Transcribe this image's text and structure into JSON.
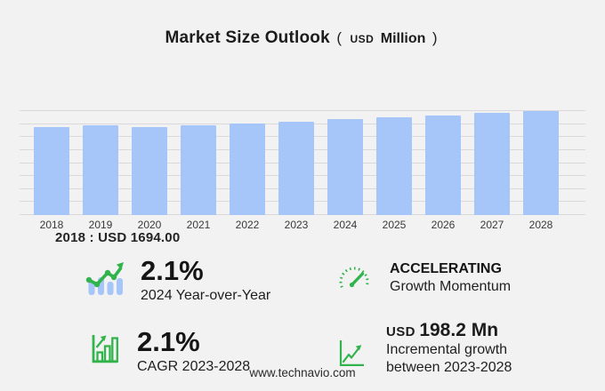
{
  "title": {
    "main": "Market Size Outlook",
    "paren_open": "(",
    "unit_prefix": "USD",
    "unit": "Million",
    "paren_close": ")"
  },
  "chart_data": {
    "type": "bar",
    "title": "Market Size Outlook (USD Million)",
    "categories": [
      "2018",
      "2019",
      "2020",
      "2021",
      "2022",
      "2023",
      "2024",
      "2025",
      "2026",
      "2027",
      "2028"
    ],
    "values": [
      1694,
      1740,
      1704,
      1740,
      1763,
      1808,
      1846,
      1885,
      1924,
      1964,
      2006
    ],
    "xlabel": "",
    "ylabel": "",
    "unit": "USD Million",
    "ylim": [
      0,
      2300
    ],
    "y_ticks_labeled": false,
    "grid": true,
    "legend": "none",
    "annotation": "2018 : USD  1694.00"
  },
  "stats": {
    "yoy": {
      "value": "2.1%",
      "label": "2024 Year-over-Year",
      "icon": "trend-line-over-bars-icon"
    },
    "momentum": {
      "value": "ACCELERATING",
      "label": "Growth Momentum",
      "icon": "speedometer-gauge-icon"
    },
    "cagr": {
      "value": "2.1%",
      "label": "CAGR 2023-2028",
      "icon": "bar-chart-growth-icon"
    },
    "incremental": {
      "value_prefix": "USD",
      "value": "198.2 Mn",
      "label_line1": "Incremental growth",
      "label_line2": "between 2023-2028",
      "icon": "line-chart-arrow-icon"
    }
  },
  "footer": {
    "url": "www.technavio.com"
  },
  "colors": {
    "background": "#f2f2f3",
    "bar_blue": "#a6c5f8",
    "gridline": "#d9d9db",
    "accent_green": "#31b44b",
    "text_dark": "#1c1c1c"
  }
}
